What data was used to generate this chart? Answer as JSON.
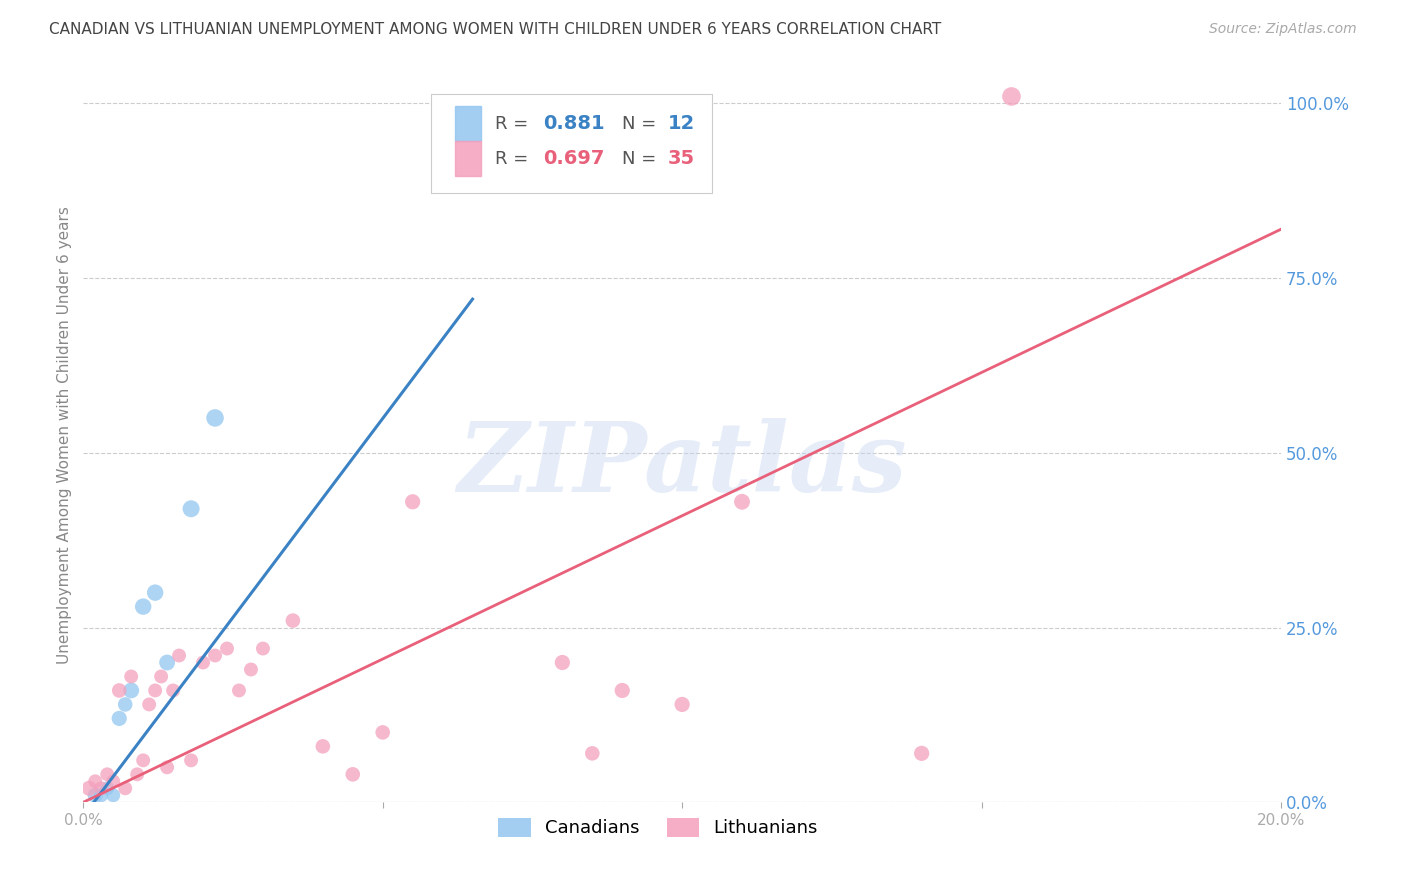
{
  "title": "CANADIAN VS LITHUANIAN UNEMPLOYMENT AMONG WOMEN WITH CHILDREN UNDER 6 YEARS CORRELATION CHART",
  "source": "Source: ZipAtlas.com",
  "ylabel": "Unemployment Among Women with Children Under 6 years",
  "watermark": "ZIPatlas",
  "xlim": [
    0,
    0.2
  ],
  "ylim": [
    0,
    1.05
  ],
  "xticks": [
    0.0,
    0.05,
    0.1,
    0.15,
    0.2
  ],
  "yticks_right": [
    0.0,
    0.25,
    0.5,
    0.75,
    1.0
  ],
  "ytick_labels_right": [
    "0.0%",
    "25.0%",
    "50.0%",
    "75.0%",
    "100.0%"
  ],
  "canadian_R": 0.881,
  "canadian_N": 12,
  "lithuanian_R": 0.697,
  "lithuanian_N": 35,
  "canadian_color": "#93C6F0",
  "lithuanian_color": "#F4A0BC",
  "canadian_line_color": "#3B82C4",
  "lithuanian_line_color": "#E8607A",
  "background_color": "#FFFFFF",
  "grid_color": "#CCCCCC",
  "title_color": "#444444",
  "axis_label_color": "#888888",
  "right_axis_color": "#5599DD",
  "canadians_x": [
    0.002,
    0.003,
    0.004,
    0.005,
    0.006,
    0.007,
    0.008,
    0.01,
    0.012,
    0.014,
    0.018,
    0.022
  ],
  "canadians_y": [
    0.01,
    0.01,
    0.02,
    0.01,
    0.12,
    0.14,
    0.16,
    0.28,
    0.3,
    0.2,
    0.42,
    0.55
  ],
  "canadians_size": [
    120,
    100,
    100,
    100,
    120,
    110,
    130,
    140,
    140,
    130,
    150,
    160
  ],
  "lithuanians_x": [
    0.001,
    0.002,
    0.003,
    0.004,
    0.005,
    0.006,
    0.007,
    0.008,
    0.009,
    0.01,
    0.011,
    0.012,
    0.013,
    0.014,
    0.015,
    0.016,
    0.018,
    0.02,
    0.022,
    0.024,
    0.026,
    0.028,
    0.03,
    0.035,
    0.04,
    0.045,
    0.05,
    0.055,
    0.08,
    0.085,
    0.09,
    0.1,
    0.11,
    0.14,
    0.155
  ],
  "lithuanians_y": [
    0.02,
    0.03,
    0.02,
    0.04,
    0.03,
    0.16,
    0.02,
    0.18,
    0.04,
    0.06,
    0.14,
    0.16,
    0.18,
    0.05,
    0.16,
    0.21,
    0.06,
    0.2,
    0.21,
    0.22,
    0.16,
    0.19,
    0.22,
    0.26,
    0.08,
    0.04,
    0.1,
    0.43,
    0.2,
    0.07,
    0.16,
    0.14,
    0.43,
    0.07,
    1.01
  ],
  "lithuanians_size": [
    120,
    100,
    100,
    100,
    100,
    110,
    100,
    100,
    100,
    100,
    100,
    100,
    100,
    100,
    100,
    100,
    100,
    100,
    100,
    100,
    100,
    100,
    100,
    110,
    110,
    110,
    110,
    120,
    120,
    110,
    120,
    120,
    130,
    120,
    180
  ],
  "ca_line_x0": 0.0,
  "ca_line_y0": -0.02,
  "ca_line_x1": 0.065,
  "ca_line_y1": 0.72,
  "lt_line_x0": 0.0,
  "lt_line_y0": 0.0,
  "lt_line_x1": 0.2,
  "lt_line_y1": 0.82
}
